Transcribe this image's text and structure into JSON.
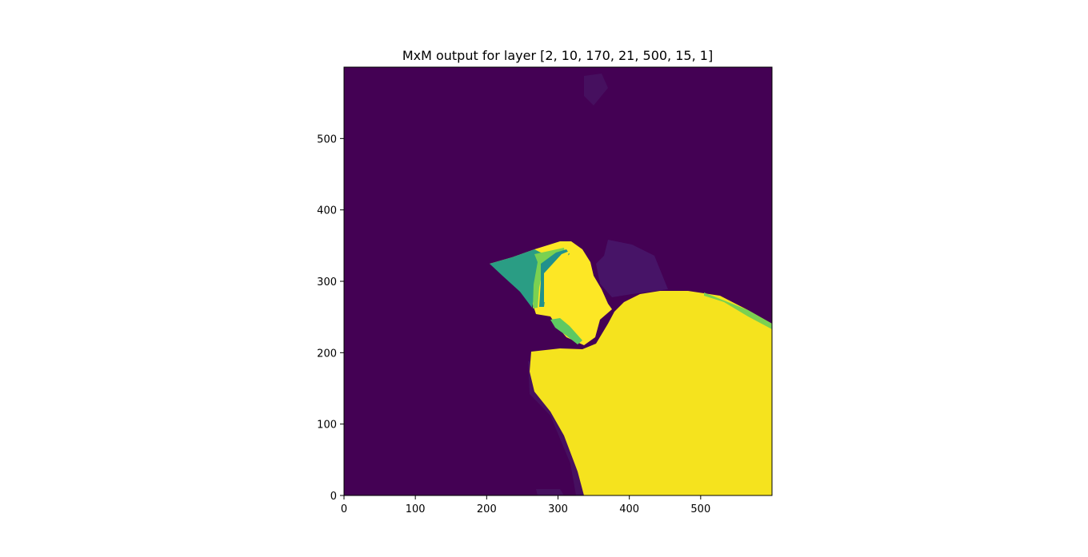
{
  "chart_data": {
    "type": "heatmap",
    "title": "MxM output for layer [2, 10, 170, 21, 500, 15, 1]",
    "xlabel": "",
    "ylabel": "",
    "xlim": [
      0,
      600
    ],
    "ylim": [
      0,
      600
    ],
    "x_ticks": [
      0,
      100,
      200,
      300,
      400,
      500
    ],
    "y_ticks": [
      0,
      100,
      200,
      300,
      400,
      500
    ],
    "colormap": "viridis",
    "colors": {
      "background": "#440154",
      "faint_halo": "#46105f",
      "dim_region": "#471467",
      "mid_teal": "#21918c",
      "green_teal": "#2a9d84",
      "light_green": "#7ad151",
      "bright_green": "#5ec962",
      "high_yellow": "#fde725",
      "yellow_alt": "#f5e31e"
    },
    "grid": false,
    "legend": "none"
  }
}
